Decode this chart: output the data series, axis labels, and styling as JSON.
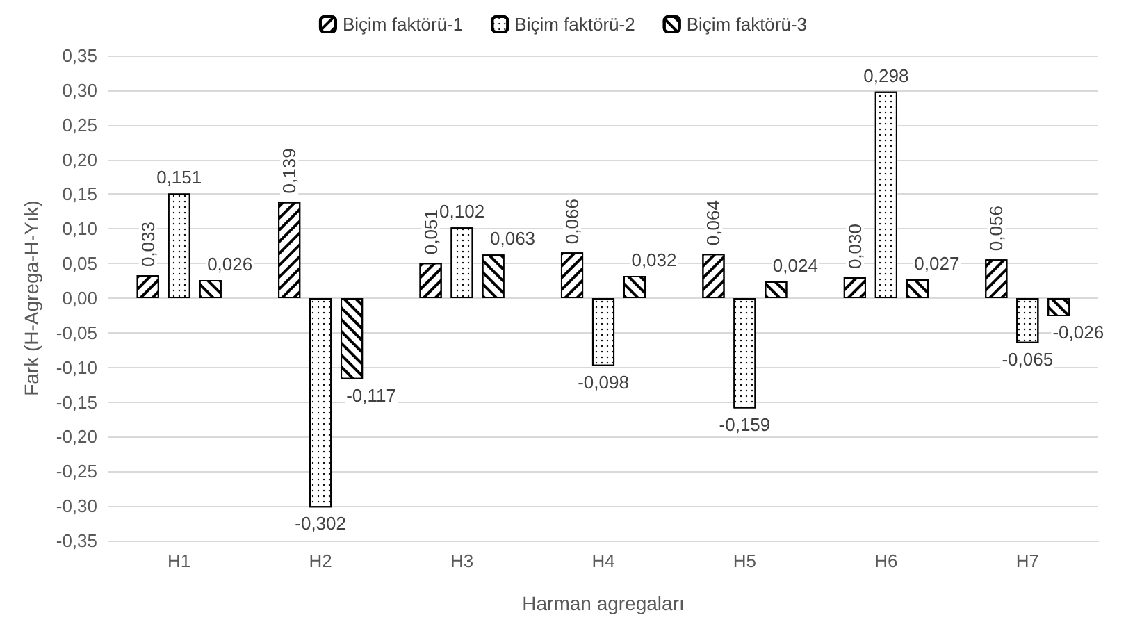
{
  "chart_data": {
    "type": "bar",
    "xlabel": "Harman agregaları",
    "ylabel": "Fark (H-Agrega-H-Yık)",
    "categories": [
      "H1",
      "H2",
      "H3",
      "H4",
      "H5",
      "H6",
      "H7"
    ],
    "series": [
      {
        "name": "Biçim faktörü-1",
        "color": "#000000",
        "values": [
          0.033,
          0.139,
          0.051,
          0.066,
          0.064,
          0.03,
          0.056
        ],
        "value_labels": [
          "0,033",
          "0,139",
          "0,051",
          "0,066",
          "0,064",
          "0,030",
          "0,056"
        ]
      },
      {
        "name": "Biçim faktörü-2",
        "color": "#000000",
        "values": [
          0.151,
          -0.302,
          0.102,
          -0.098,
          -0.159,
          0.298,
          -0.065
        ],
        "value_labels": [
          "0,151",
          "-0,302",
          "0,102",
          "-0,098",
          "-0,159",
          "0,298",
          "-0,065"
        ]
      },
      {
        "name": "Biçim faktörü-3",
        "color": "#000000",
        "values": [
          0.026,
          -0.117,
          0.063,
          0.032,
          0.024,
          0.027,
          -0.026
        ],
        "value_labels": [
          "0,026",
          "-0,117",
          "0,063",
          "0,032",
          "0,024",
          "0,027",
          "-0,026"
        ]
      }
    ],
    "ylim": [
      -0.35,
      0.35
    ],
    "yticks": [
      {
        "value": -0.35,
        "label": "-0,35"
      },
      {
        "value": -0.3,
        "label": "-0,30"
      },
      {
        "value": -0.25,
        "label": "-0,25"
      },
      {
        "value": -0.2,
        "label": "-0,20"
      },
      {
        "value": -0.15,
        "label": "-0,15"
      },
      {
        "value": -0.1,
        "label": "-0,10"
      },
      {
        "value": -0.05,
        "label": "-0,05"
      },
      {
        "value": 0,
        "label": "0,00"
      },
      {
        "value": 0.05,
        "label": "0,05"
      },
      {
        "value": 0.1,
        "label": "0,10"
      },
      {
        "value": 0.15,
        "label": "0,15"
      },
      {
        "value": 0.2,
        "label": "0,20"
      },
      {
        "value": 0.25,
        "label": "0,25"
      },
      {
        "value": 0.3,
        "label": "0,30"
      },
      {
        "value": 0.35,
        "label": "0,35"
      }
    ],
    "grid": "y",
    "legend": "top"
  }
}
